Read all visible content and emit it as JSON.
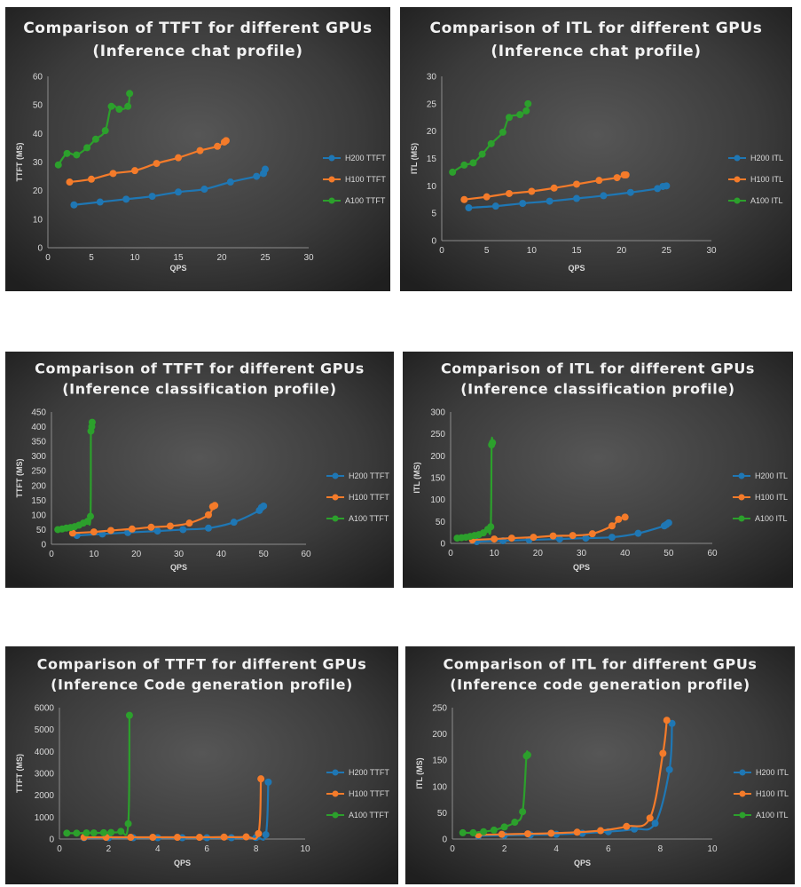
{
  "colors": {
    "H200": "#1f77b4",
    "H100": "#f47b2a",
    "A100": "#2ca02c"
  },
  "chart_data": [
    {
      "type": "line",
      "title": "Comparison of TTFT for different GPUs",
      "subtitle": "(Inference chat profile)",
      "xlabel": "QPS",
      "ylabel": "TTFT (MS)",
      "xlim": [
        0,
        30
      ],
      "xticks": [
        0,
        5,
        10,
        15,
        20,
        25,
        30
      ],
      "ylim": [
        0,
        60
      ],
      "yticks": [
        0,
        10,
        20,
        30,
        40,
        50,
        60
      ],
      "grid": false,
      "legend": "right",
      "series": [
        {
          "name": "H200 TTFT",
          "color": "#1f77b4",
          "x": [
            3,
            6,
            9,
            12,
            15,
            18,
            21,
            24,
            24.8,
            25
          ],
          "y": [
            15,
            16,
            17,
            18,
            19.5,
            20.5,
            23,
            25,
            26,
            27.5
          ]
        },
        {
          "name": "H100 TTFT",
          "color": "#f47b2a",
          "x": [
            2.5,
            5,
            7.5,
            10,
            12.5,
            15,
            17.5,
            19.5,
            20.3,
            20.5
          ],
          "y": [
            23,
            24,
            26,
            27,
            29.5,
            31.5,
            34,
            35.5,
            37,
            37.5
          ]
        },
        {
          "name": "A100 TTFT",
          "color": "#2ca02c",
          "x": [
            1.2,
            2.2,
            3.3,
            4.5,
            5.5,
            6.6,
            7.3,
            8.2,
            9.2,
            9.4
          ],
          "y": [
            29,
            33,
            32.5,
            35,
            38,
            41,
            49.5,
            48.5,
            49.5,
            54
          ]
        }
      ]
    },
    {
      "type": "line",
      "title": "Comparison of ITL for different GPUs",
      "subtitle": "(Inference chat profile)",
      "xlabel": "QPS",
      "ylabel": "ITL (MS)",
      "xlim": [
        0,
        30
      ],
      "xticks": [
        0,
        5,
        10,
        15,
        20,
        25,
        30
      ],
      "ylim": [
        0,
        30
      ],
      "yticks": [
        0,
        5,
        10,
        15,
        20,
        25,
        30
      ],
      "grid": false,
      "legend": "right",
      "series": [
        {
          "name": "H200 ITL",
          "color": "#1f77b4",
          "x": [
            3,
            6,
            9,
            12,
            15,
            18,
            21,
            24,
            24.6,
            25
          ],
          "y": [
            6,
            6.3,
            6.8,
            7.2,
            7.7,
            8.2,
            8.8,
            9.5,
            9.9,
            10
          ]
        },
        {
          "name": "H100 ITL",
          "color": "#f47b2a",
          "x": [
            2.5,
            5,
            7.5,
            10,
            12.5,
            15,
            17.5,
            19.5,
            20.3,
            20.5
          ],
          "y": [
            7.5,
            8,
            8.6,
            9,
            9.6,
            10.3,
            11,
            11.5,
            12,
            12
          ]
        },
        {
          "name": "A100 ITL",
          "color": "#2ca02c",
          "x": [
            1.2,
            2.5,
            3.5,
            4.5,
            5.5,
            6.8,
            7.5,
            8.7,
            9.4,
            9.6
          ],
          "y": [
            12.5,
            13.8,
            14.2,
            15.8,
            17.7,
            19.8,
            22.5,
            23,
            23.7,
            25
          ]
        }
      ]
    },
    {
      "type": "line",
      "title": "Comparison of TTFT for different GPUs",
      "subtitle": "(Inference classification profile)",
      "xlabel": "QPS",
      "ylabel": "TTFT (MS)",
      "xlim": [
        0,
        60
      ],
      "xticks": [
        0,
        10,
        20,
        30,
        40,
        50,
        60
      ],
      "ylim": [
        0,
        450
      ],
      "yticks": [
        0,
        50,
        100,
        150,
        200,
        250,
        300,
        350,
        400,
        450
      ],
      "grid": false,
      "legend": "right",
      "series": [
        {
          "name": "H200 TTFT",
          "color": "#1f77b4",
          "x": [
            6,
            12,
            18,
            25,
            31,
            37,
            43,
            49,
            49.5,
            50
          ],
          "y": [
            30,
            35,
            40,
            45,
            50,
            55,
            75,
            115,
            125,
            130
          ]
        },
        {
          "name": "H100 TTFT",
          "color": "#f47b2a",
          "x": [
            5,
            10,
            14,
            19,
            23.5,
            28,
            32.5,
            37,
            38,
            38.5
          ],
          "y": [
            38,
            42,
            47,
            52,
            58,
            62,
            72,
            100,
            128,
            132
          ]
        },
        {
          "name": "A100 TTFT",
          "color": "#2ca02c",
          "x": [
            1.5,
            2.5,
            3.5,
            4.5,
            5.5,
            6.5,
            7.5,
            8.5,
            9.2,
            9.3,
            9.5,
            9.6
          ],
          "y": [
            50,
            52,
            55,
            57,
            60,
            65,
            72,
            78,
            95,
            385,
            400,
            415
          ]
        }
      ]
    },
    {
      "type": "line",
      "title": "Comparison of ITL for different GPUs",
      "subtitle": "(Inference classification profile)",
      "xlabel": "QPS",
      "ylabel": "ITL (MS)",
      "xlim": [
        0,
        60
      ],
      "xticks": [
        0,
        10,
        20,
        30,
        40,
        50,
        60
      ],
      "ylim": [
        0,
        300
      ],
      "yticks": [
        0,
        50,
        100,
        150,
        200,
        250,
        300
      ],
      "grid": false,
      "legend": "right",
      "series": [
        {
          "name": "H200 ITL",
          "color": "#1f77b4",
          "x": [
            6,
            12,
            18,
            25,
            31,
            37,
            43,
            49,
            49.5,
            50
          ],
          "y": [
            4,
            6,
            8,
            10,
            12,
            14,
            23,
            40,
            43,
            47
          ]
        },
        {
          "name": "H100 ITL",
          "color": "#f47b2a",
          "x": [
            5,
            10,
            14,
            19,
            23.5,
            28,
            32.5,
            37,
            38.5,
            40
          ],
          "y": [
            8,
            10,
            12,
            14,
            17,
            18,
            22,
            40,
            55,
            60
          ]
        },
        {
          "name": "A100 ITL",
          "color": "#2ca02c",
          "x": [
            1.5,
            2.5,
            3.5,
            4.5,
            5.5,
            6.5,
            7.5,
            8.5,
            9.2,
            9.4,
            9.6
          ],
          "y": [
            12,
            13,
            14,
            16,
            18,
            20,
            24,
            32,
            38,
            225,
            230
          ]
        }
      ]
    },
    {
      "type": "line",
      "title": "Comparison of TTFT for different GPUs",
      "subtitle": "(Inference Code generation profile)",
      "xlabel": "QPS",
      "ylabel": "TTFT (MS)",
      "xlim": [
        0,
        10
      ],
      "xticks": [
        0,
        2,
        4,
        6,
        8,
        10
      ],
      "ylim": [
        0,
        6000
      ],
      "yticks": [
        0,
        1000,
        2000,
        3000,
        4000,
        5000,
        6000
      ],
      "grid": false,
      "legend": "right",
      "series": [
        {
          "name": "H200 TTFT",
          "color": "#1f77b4",
          "x": [
            1,
            2,
            3,
            4,
            5,
            6,
            7,
            8,
            8.4,
            8.5
          ],
          "y": [
            60,
            60,
            60,
            60,
            60,
            60,
            60,
            70,
            200,
            2600
          ]
        },
        {
          "name": "H100 TTFT",
          "color": "#f47b2a",
          "x": [
            1,
            1.9,
            2.9,
            3.8,
            4.8,
            5.7,
            6.7,
            7.6,
            8.1,
            8.2
          ],
          "y": [
            80,
            80,
            80,
            80,
            80,
            80,
            90,
            100,
            250,
            2750
          ]
        },
        {
          "name": "A100 TTFT",
          "color": "#2ca02c",
          "x": [
            0.3,
            0.7,
            1.1,
            1.4,
            1.8,
            2.1,
            2.5,
            2.8,
            2.85
          ],
          "y": [
            270,
            270,
            280,
            280,
            290,
            300,
            350,
            700,
            5650
          ]
        }
      ]
    },
    {
      "type": "line",
      "title": "Comparison of ITL for different GPUs",
      "subtitle": "(Inference code generation profile)",
      "xlabel": "QPS",
      "ylabel": "ITL (MS)",
      "xlim": [
        0,
        10
      ],
      "xticks": [
        0,
        2,
        4,
        6,
        8,
        10
      ],
      "ylim": [
        0,
        250
      ],
      "yticks": [
        0,
        50,
        100,
        150,
        200,
        250
      ],
      "grid": false,
      "legend": "right",
      "series": [
        {
          "name": "H200 ITL",
          "color": "#1f77b4",
          "x": [
            1,
            2,
            3,
            4,
            5,
            6,
            7,
            7.8,
            8.35,
            8.45
          ],
          "y": [
            6,
            7,
            8,
            9,
            11,
            14,
            19,
            30,
            132,
            220
          ]
        },
        {
          "name": "H100 ITL",
          "color": "#f47b2a",
          "x": [
            1,
            1.9,
            2.9,
            3.8,
            4.8,
            5.7,
            6.7,
            7.6,
            8.1,
            8.25
          ],
          "y": [
            8,
            9,
            10,
            11,
            13,
            16,
            24,
            40,
            163,
            226
          ]
        },
        {
          "name": "A100 ITL",
          "color": "#2ca02c",
          "x": [
            0.4,
            0.8,
            1.2,
            1.6,
            2,
            2.4,
            2.7,
            2.85,
            2.9
          ],
          "y": [
            12,
            12,
            14,
            17,
            23,
            32,
            52,
            158,
            160
          ]
        }
      ]
    }
  ]
}
